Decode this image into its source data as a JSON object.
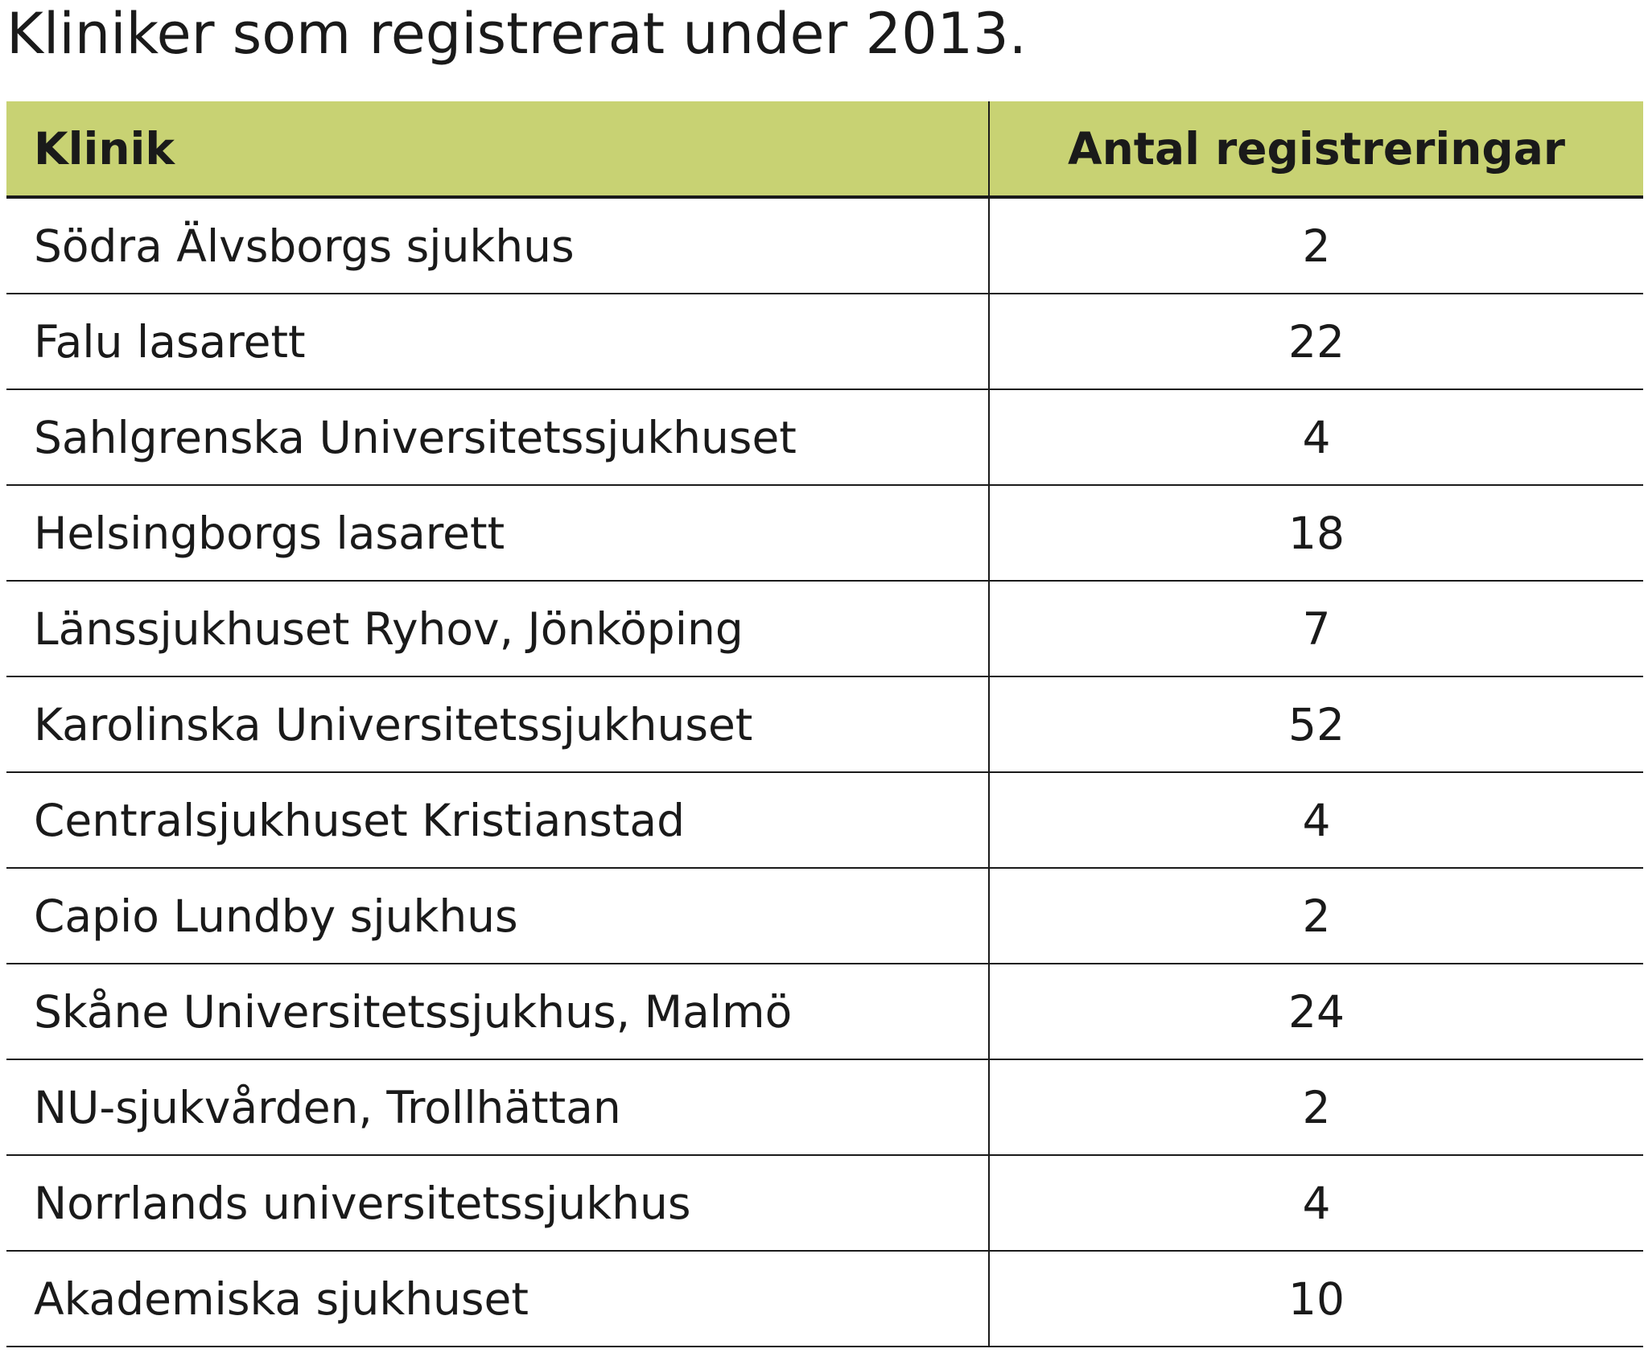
{
  "title": "Kliniker som registrerat under 2013.",
  "table": {
    "headers": [
      "Klinik",
      "Antal registreringar"
    ],
    "rows": [
      [
        "Södra Älvsborgs sjukhus",
        "2"
      ],
      [
        "Falu lasarett",
        "22"
      ],
      [
        "Sahlgrenska Universitetssjukhuset",
        "4"
      ],
      [
        "Helsingborgs lasarett",
        "18"
      ],
      [
        "Länssjukhuset Ryhov, Jönköping",
        "7"
      ],
      [
        "Karolinska Universitetssjukhuset",
        "52"
      ],
      [
        "Centralsjukhuset Kristianstad",
        "4"
      ],
      [
        "Capio Lundby sjukhus",
        "2"
      ],
      [
        "Skåne Universitetssjukhus, Malmö",
        "24"
      ],
      [
        "NU-sjukvården, Trollhättan",
        "2"
      ],
      [
        "Norrlands universitetssjukhus",
        "4"
      ],
      [
        "Akademiska sjukhuset",
        "10"
      ]
    ]
  },
  "colors": {
    "header_background": "#c8d273",
    "text": "#1a1a1a",
    "rule": "#1a1a1a"
  }
}
